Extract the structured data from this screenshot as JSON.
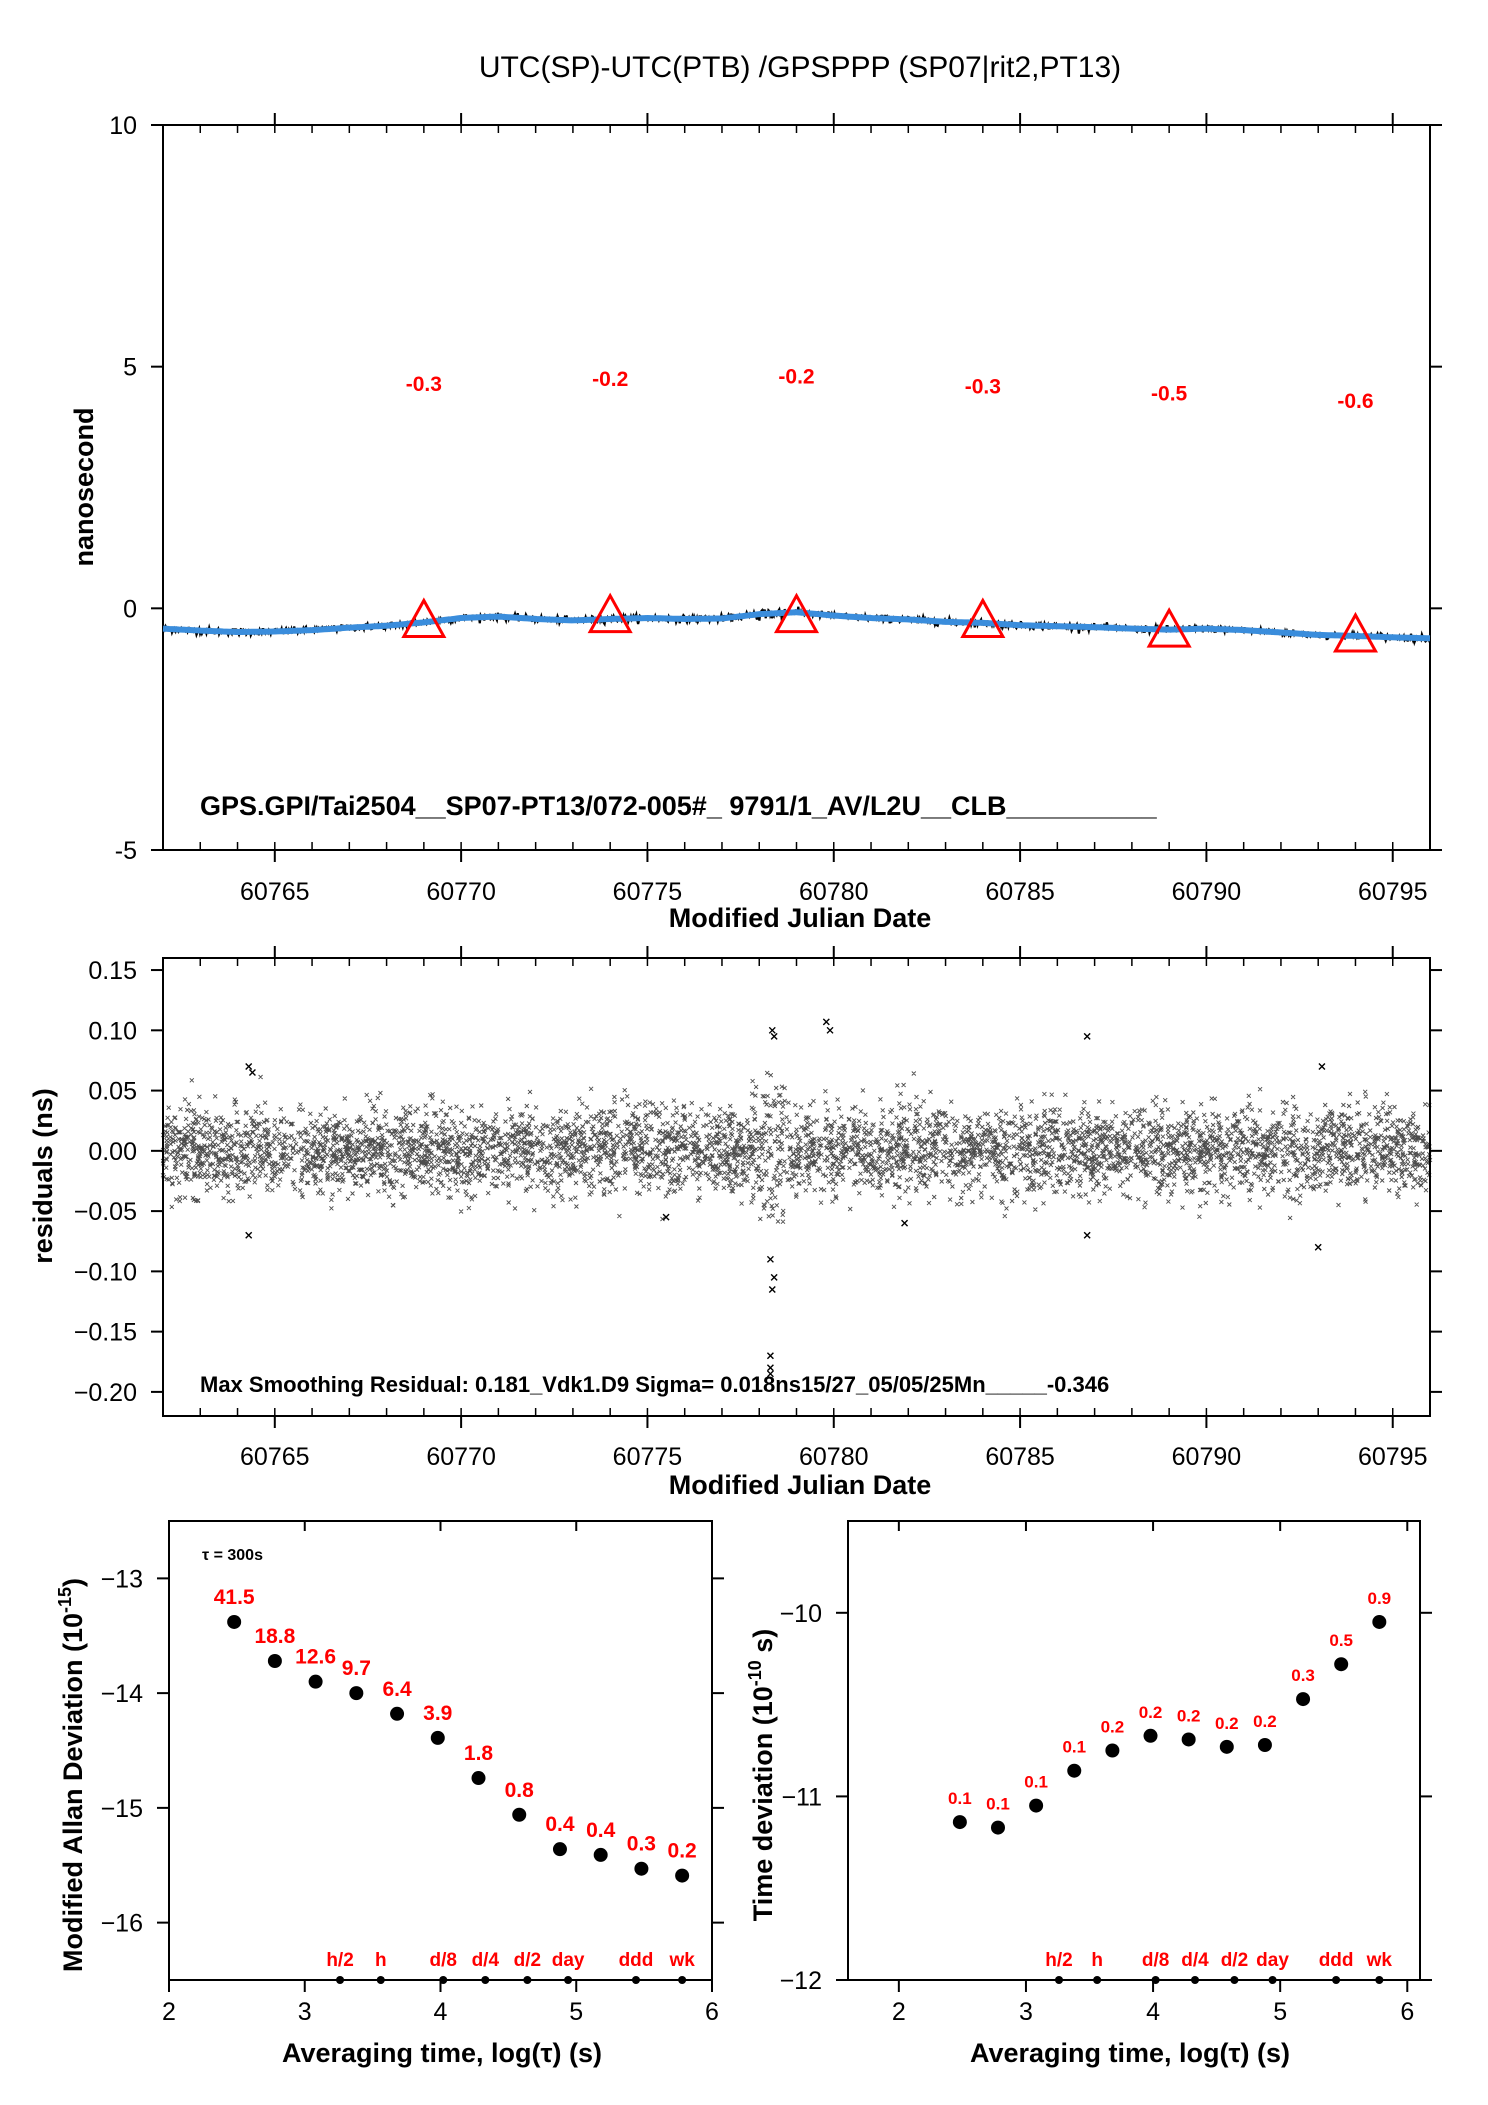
{
  "title": "UTC(SP)-UTC(PTB)  /GPSPPP  (SP07|rit2,PT13)",
  "chart_data": [
    {
      "id": "main",
      "type": "line",
      "xlabel": "Modified Julian Date",
      "ylabel": "nanosecond",
      "xlim": [
        60762,
        60796
      ],
      "ylim": [
        -5,
        10
      ],
      "xticks": [
        60765,
        60770,
        60775,
        60780,
        60785,
        60790,
        60795
      ],
      "yticks": [
        -5,
        0,
        5,
        10
      ],
      "series_colors": {
        "raw": "#000000",
        "smoothed": "#3a8ddc",
        "markers": "#ff0000"
      },
      "series": [
        {
          "kind": "smoothed",
          "x": [
            60762,
            60763,
            60764,
            60765,
            60766,
            60767,
            60768,
            60769,
            60770,
            60771,
            60772,
            60773,
            60774,
            60775,
            60776,
            60777,
            60778,
            60779,
            60780,
            60781,
            60782,
            60783,
            60784,
            60785,
            60786,
            60787,
            60788,
            60789,
            60790,
            60791,
            60792,
            60793,
            60794,
            60795,
            60796
          ],
          "y": [
            -0.42,
            -0.46,
            -0.49,
            -0.48,
            -0.45,
            -0.4,
            -0.36,
            -0.29,
            -0.2,
            -0.17,
            -0.22,
            -0.25,
            -0.22,
            -0.2,
            -0.22,
            -0.21,
            -0.12,
            -0.08,
            -0.15,
            -0.2,
            -0.23,
            -0.28,
            -0.3,
            -0.35,
            -0.37,
            -0.39,
            -0.42,
            -0.44,
            -0.42,
            -0.45,
            -0.5,
            -0.55,
            -0.57,
            -0.6,
            -0.62
          ]
        }
      ],
      "markers": {
        "x": [
          60769,
          60774,
          60779,
          60784,
          60789,
          60794
        ],
        "y": [
          -0.3,
          -0.2,
          -0.2,
          -0.3,
          -0.5,
          -0.6
        ],
        "labels": [
          "-0.3",
          "-0.2",
          "-0.2",
          "-0.3",
          "-0.5",
          "-0.6"
        ],
        "label_y": [
          4.5,
          4.6,
          4.65,
          4.45,
          4.3,
          4.15
        ]
      },
      "annotation": "GPS.GPI/Tai2504__SP07-PT13/072-005#_  9791/1_AV/L2U__CLB__________"
    },
    {
      "id": "residuals",
      "type": "scatter",
      "xlabel": "Modified Julian Date",
      "ylabel": "residuals (ns)",
      "xlim": [
        60762,
        60796
      ],
      "ylim": [
        -0.22,
        0.16
      ],
      "xticks": [
        60765,
        60770,
        60775,
        60780,
        60785,
        60790,
        60795
      ],
      "yticks": [
        -0.2,
        -0.15,
        -0.1,
        -0.05,
        0.0,
        0.05,
        0.1,
        0.15
      ],
      "ytick_labels": [
        "−0.20",
        "−0.15",
        "−0.10",
        "−0.05",
        "0.00",
        "0.05",
        "0.10",
        "0.15"
      ],
      "sigma_ns": 0.018,
      "outliers": {
        "x": [
          60764.3,
          60764.3,
          60764.4,
          60778.3,
          60778.3,
          60778.35,
          60778.4,
          60778.3,
          60778.35,
          60778.4,
          60778.3,
          60779.8,
          60779.9,
          60786.8,
          60786.8,
          60793.0,
          60793.1,
          60775.5,
          60781.9
        ],
        "y": [
          0.07,
          -0.07,
          0.065,
          -0.18,
          -0.17,
          -0.115,
          -0.105,
          -0.09,
          0.1,
          0.095,
          -0.185,
          0.107,
          0.1,
          0.095,
          -0.07,
          -0.08,
          0.07,
          -0.055,
          -0.06
        ]
      },
      "annotation": "Max Smoothing Residual: 0.181_Vdk1.D9  Sigma= 0.018ns15/27_05/05/25Mn_____-0.346"
    },
    {
      "id": "mdev",
      "type": "scatter",
      "xlabel": "Averaging time, log(τ) (s)",
      "ylabel_main": "Modified Allan Deviation (10",
      "ylabel_sup": "-15",
      "ylabel_end": ")",
      "xlim": [
        2,
        6
      ],
      "ylim": [
        -16.5,
        -12.5
      ],
      "xticks": [
        2,
        3,
        4,
        5,
        6
      ],
      "yticks": [
        -16,
        -15,
        -14,
        -13
      ],
      "ytick_labels": [
        "−16",
        "−15",
        "−14",
        "−13"
      ],
      "tau0": "τ = 300s",
      "x": [
        2.48,
        2.78,
        3.08,
        3.38,
        3.68,
        3.98,
        4.28,
        4.58,
        4.88,
        5.18,
        5.48,
        5.78
      ],
      "y": [
        -13.38,
        -13.72,
        -13.9,
        -14.0,
        -14.18,
        -14.39,
        -14.74,
        -15.06,
        -15.36,
        -15.41,
        -15.53,
        -15.59
      ],
      "labels": [
        "41.5",
        "18.8",
        "12.6",
        "9.7",
        "6.4",
        "3.9",
        "1.8",
        "0.8",
        "0.4",
        "0.4",
        "0.3",
        "0.2"
      ],
      "mark_x": [
        3.26,
        3.56,
        4.02,
        4.33,
        4.64,
        4.94,
        5.44,
        5.78
      ],
      "mark_labels": [
        "h/2",
        "h",
        "d/8",
        "d/4",
        "d/2",
        "day",
        "ddd",
        "wk"
      ]
    },
    {
      "id": "tdev",
      "type": "scatter",
      "xlabel": "Averaging time, log(τ) (s)",
      "ylabel_main": "Time deviation (10",
      "ylabel_sup": "-10",
      "ylabel_end": " s)",
      "xlim": [
        1.6,
        6.1
      ],
      "ylim": [
        -12,
        -9.5
      ],
      "xticks": [
        2,
        3,
        4,
        5,
        6
      ],
      "yticks": [
        -12,
        -11,
        -10
      ],
      "ytick_labels": [
        "−12",
        "−11",
        "−10"
      ],
      "x": [
        2.48,
        2.78,
        3.08,
        3.38,
        3.68,
        3.98,
        4.28,
        4.58,
        4.88,
        5.18,
        5.48,
        5.78
      ],
      "y": [
        -11.14,
        -11.17,
        -11.05,
        -10.86,
        -10.75,
        -10.67,
        -10.69,
        -10.73,
        -10.72,
        -10.47,
        -10.28,
        -10.05
      ],
      "labels": [
        "0.1",
        "0.1",
        "0.1",
        "0.1",
        "0.2",
        "0.2",
        "0.2",
        "0.2",
        "0.2",
        "0.3",
        "0.5",
        "0.9"
      ],
      "mark_x": [
        3.26,
        3.56,
        4.02,
        4.33,
        4.64,
        4.94,
        5.44,
        5.78
      ],
      "mark_labels": [
        "h/2",
        "h",
        "d/8",
        "d/4",
        "d/2",
        "day",
        "ddd",
        "wk"
      ]
    }
  ]
}
